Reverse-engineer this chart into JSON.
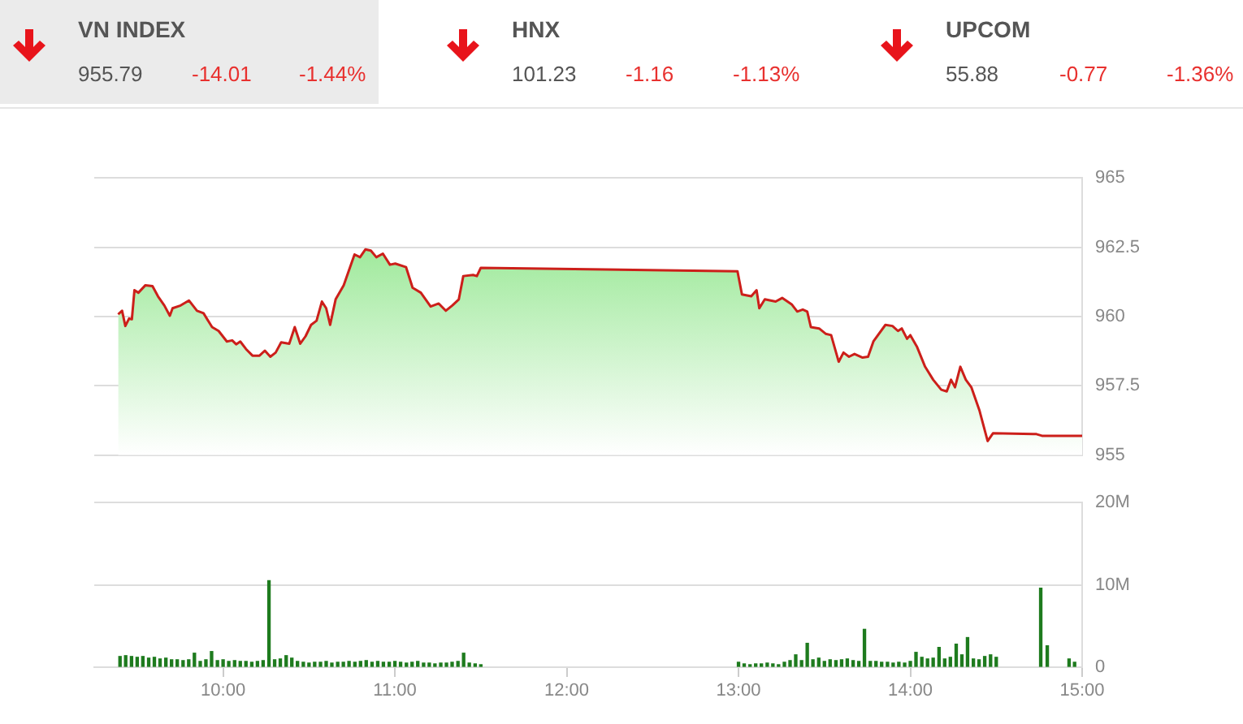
{
  "chart_data": [
    {
      "type": "other",
      "annotations": [
        "VN INDEX",
        "955.79",
        "-14.01",
        "-1.44%",
        "HNX",
        "101.23",
        "-1.16",
        "-1.13%",
        "UPCOM",
        "55.88",
        "-0.77",
        "-1.36%"
      ]
    },
    {
      "type": "area",
      "color": "#cc1f1a",
      "xlim": [
        9.25,
        15
      ],
      "ylim": [
        955,
        965
      ],
      "yticks": [
        955,
        957.5,
        960,
        962.5,
        965
      ],
      "grid": "y",
      "tick_labels": "y",
      "x": [
        9.389,
        9.412,
        9.431,
        9.453,
        9.469,
        9.484,
        9.507,
        9.548,
        9.589,
        9.621,
        9.658,
        9.69,
        9.706,
        9.753,
        9.801,
        9.848,
        9.886,
        9.936,
        9.974,
        10.022,
        10.053,
        10.076,
        10.1,
        10.133,
        10.171,
        10.212,
        10.243,
        10.275,
        10.306,
        10.338,
        10.385,
        10.417,
        10.449,
        10.48,
        10.512,
        10.544,
        10.575,
        10.6,
        10.623,
        10.655,
        10.702,
        10.765,
        10.797,
        10.828,
        10.86,
        10.892,
        10.93,
        10.971,
        11.002,
        11.065,
        11.103,
        11.151,
        11.208,
        11.255,
        11.296,
        11.334,
        11.372,
        11.398,
        11.455,
        11.477,
        11.5,
        12.994,
        13.02,
        13.074,
        13.105,
        13.121,
        13.153,
        13.216,
        13.254,
        13.311,
        13.342,
        13.374,
        13.4,
        13.421,
        13.469,
        13.507,
        13.539,
        13.583,
        13.611,
        13.643,
        13.675,
        13.722,
        13.754,
        13.785,
        13.855,
        13.896,
        13.928,
        13.95,
        13.981,
        14.0,
        14.038,
        14.086,
        14.133,
        14.18,
        14.212,
        14.237,
        14.26,
        14.291,
        14.323,
        14.355,
        14.402,
        14.45,
        14.481,
        14.734,
        14.766,
        15.0
      ],
      "values": [
        960.08,
        960.21,
        959.66,
        959.93,
        959.9,
        960.95,
        960.86,
        961.13,
        961.1,
        960.73,
        960.4,
        960.03,
        960.3,
        960.4,
        960.58,
        960.21,
        960.12,
        959.62,
        959.48,
        959.1,
        959.14,
        959.0,
        959.1,
        958.83,
        958.59,
        958.59,
        958.77,
        958.55,
        958.7,
        959.07,
        959.02,
        959.62,
        959.02,
        959.29,
        959.7,
        959.85,
        960.54,
        960.3,
        959.7,
        960.62,
        961.13,
        962.24,
        962.14,
        962.42,
        962.38,
        962.14,
        962.27,
        961.87,
        961.91,
        961.78,
        961.04,
        960.86,
        960.36,
        960.47,
        960.21,
        960.4,
        960.62,
        961.46,
        961.5,
        961.46,
        961.76,
        961.63,
        960.8,
        960.73,
        960.95,
        960.3,
        960.62,
        960.54,
        960.67,
        960.43,
        960.18,
        960.25,
        960.18,
        959.62,
        959.57,
        959.38,
        959.33,
        958.37,
        958.7,
        958.55,
        958.65,
        958.52,
        958.55,
        959.1,
        959.7,
        959.66,
        959.48,
        959.57,
        959.2,
        959.33,
        958.92,
        958.19,
        957.72,
        957.36,
        957.3,
        957.72,
        957.45,
        958.19,
        957.72,
        957.45,
        956.62,
        955.51,
        955.79,
        955.76,
        955.7,
        955.7
      ]
    },
    {
      "type": "bar",
      "color": "#1e7b1e",
      "xlim": [
        9.25,
        15
      ],
      "xticks": [
        {
          "value": 10,
          "label": "10:00"
        },
        {
          "value": 11,
          "label": "11:00"
        },
        {
          "value": 12,
          "label": "12:00"
        },
        {
          "value": 13,
          "label": "13:00"
        },
        {
          "value": 14,
          "label": "14:00"
        },
        {
          "value": 15,
          "label": "15:00"
        }
      ],
      "ylim": [
        0,
        20
      ],
      "yticks": [
        0,
        {
          "value": 10,
          "label": "10M"
        },
        {
          "value": 20,
          "label": "20M"
        }
      ],
      "grid": "y",
      "x": [
        9.4,
        9.433,
        9.467,
        9.5,
        9.533,
        9.567,
        9.6,
        9.633,
        9.667,
        9.7,
        9.733,
        9.767,
        9.8,
        9.833,
        9.867,
        9.9,
        9.933,
        9.967,
        10.0,
        10.033,
        10.067,
        10.1,
        10.133,
        10.167,
        10.2,
        10.233,
        10.267,
        10.3,
        10.333,
        10.367,
        10.4,
        10.433,
        10.467,
        10.5,
        10.533,
        10.567,
        10.6,
        10.633,
        10.667,
        10.7,
        10.733,
        10.767,
        10.8,
        10.833,
        10.867,
        10.9,
        10.933,
        10.967,
        11.0,
        11.033,
        11.067,
        11.1,
        11.133,
        11.167,
        11.2,
        11.233,
        11.267,
        11.3,
        11.333,
        11.367,
        11.4,
        11.433,
        11.467,
        11.5,
        13.0,
        13.033,
        13.067,
        13.1,
        13.133,
        13.167,
        13.2,
        13.233,
        13.267,
        13.3,
        13.333,
        13.367,
        13.4,
        13.433,
        13.467,
        13.5,
        13.533,
        13.567,
        13.6,
        13.633,
        13.667,
        13.7,
        13.733,
        13.767,
        13.8,
        13.833,
        13.867,
        13.9,
        13.933,
        13.967,
        14.0,
        14.033,
        14.067,
        14.1,
        14.133,
        14.167,
        14.2,
        14.233,
        14.267,
        14.3,
        14.333,
        14.367,
        14.4,
        14.433,
        14.467,
        14.5,
        14.759,
        14.797,
        14.924,
        14.956
      ],
      "values": [
        1.3,
        1.4,
        1.3,
        1.2,
        1.3,
        1.1,
        1.2,
        1.0,
        1.1,
        0.9,
        0.9,
        0.8,
        0.9,
        1.7,
        0.7,
        0.9,
        1.9,
        0.8,
        0.9,
        0.7,
        0.8,
        0.7,
        0.7,
        0.6,
        0.7,
        0.8,
        10.5,
        0.9,
        1.0,
        1.4,
        1.1,
        0.7,
        0.6,
        0.5,
        0.6,
        0.6,
        0.7,
        0.5,
        0.6,
        0.6,
        0.7,
        0.6,
        0.7,
        0.8,
        0.6,
        0.7,
        0.6,
        0.6,
        0.7,
        0.6,
        0.5,
        0.6,
        0.7,
        0.5,
        0.5,
        0.4,
        0.5,
        0.5,
        0.6,
        0.7,
        1.7,
        0.5,
        0.4,
        0.3,
        0.6,
        0.4,
        0.3,
        0.4,
        0.4,
        0.5,
        0.4,
        0.3,
        0.6,
        0.8,
        1.5,
        0.8,
        2.9,
        0.9,
        1.1,
        0.7,
        0.9,
        0.8,
        0.9,
        1.0,
        0.8,
        0.7,
        4.6,
        0.7,
        0.7,
        0.6,
        0.6,
        0.5,
        0.6,
        0.5,
        0.7,
        1.8,
        1.2,
        1.0,
        1.1,
        2.4,
        1.0,
        1.2,
        2.8,
        1.5,
        3.6,
        1.0,
        0.9,
        1.3,
        1.5,
        1.2,
        9.6,
        2.6,
        1.0,
        0.6
      ]
    }
  ]
}
